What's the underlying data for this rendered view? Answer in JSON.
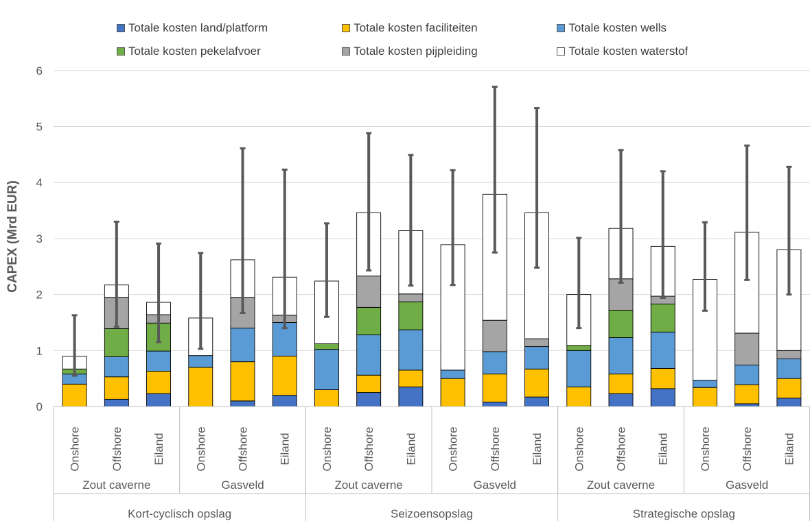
{
  "chart_data": {
    "type": "bar",
    "stacked": true,
    "ylabel": "CAPEX (Mrd EUR)",
    "ylim": [
      0,
      6
    ],
    "yticks": [
      "0",
      "1",
      "2",
      "3",
      "4",
      "5",
      "6"
    ],
    "grid": true,
    "legend_position": "top",
    "groups": [
      {
        "label": "Kort-cyclisch opslag",
        "subgroups": [
          {
            "label": "Zout caverne",
            "categories": [
              "Onshore",
              "Offshore",
              "Eiland"
            ]
          },
          {
            "label": "Gasveld",
            "categories": [
              "Onshore",
              "Offshore",
              "Eiland"
            ]
          }
        ]
      },
      {
        "label": "Seizoensopslag",
        "subgroups": [
          {
            "label": "Zout caverne",
            "categories": [
              "Onshore",
              "Offshore",
              "Eiland"
            ]
          },
          {
            "label": "Gasveld",
            "categories": [
              "Onshore",
              "Offshore",
              "Eiland"
            ]
          }
        ]
      },
      {
        "label": "Strategische opslag",
        "subgroups": [
          {
            "label": "Zout caverne",
            "categories": [
              "Onshore",
              "Offshore",
              "Eiland"
            ]
          },
          {
            "label": "Gasveld",
            "categories": [
              "Onshore",
              "Offshore",
              "Eiland"
            ]
          }
        ]
      }
    ],
    "series": [
      {
        "name": "Totale kosten land/platform",
        "color": "#4472c4",
        "values": [
          0,
          0.13,
          0.23,
          0,
          0.1,
          0.2,
          0,
          0.25,
          0.35,
          0,
          0.08,
          0.17,
          0,
          0.23,
          0.32,
          0,
          0.05,
          0.15
        ]
      },
      {
        "name": "Totale kosten faciliteiten",
        "color": "#ffc000",
        "values": [
          0.4,
          0.4,
          0.4,
          0.7,
          0.7,
          0.7,
          0.3,
          0.31,
          0.3,
          0.5,
          0.5,
          0.5,
          0.35,
          0.35,
          0.36,
          0.34,
          0.34,
          0.35
        ]
      },
      {
        "name": "Totale kosten wells",
        "color": "#5b9bd5",
        "values": [
          0.18,
          0.36,
          0.36,
          0.21,
          0.6,
          0.6,
          0.72,
          0.72,
          0.72,
          0.15,
          0.4,
          0.4,
          0.65,
          0.65,
          0.65,
          0.13,
          0.35,
          0.35
        ]
      },
      {
        "name": "Totale kosten pekelafvoer",
        "color": "#70ad47",
        "values": [
          0.09,
          0.5,
          0.5,
          0,
          0,
          0,
          0.1,
          0.49,
          0.5,
          0,
          0,
          0,
          0.09,
          0.49,
          0.5,
          0,
          0,
          0
        ]
      },
      {
        "name": "Totale kosten pijpleiding",
        "color": "#a5a5a5",
        "values": [
          0,
          0.56,
          0.15,
          0,
          0.55,
          0.13,
          0,
          0.56,
          0.14,
          0,
          0.56,
          0.14,
          0,
          0.56,
          0.14,
          0,
          0.57,
          0.15
        ]
      },
      {
        "name": "Totale kosten waterstof",
        "color": "#ffffff",
        "values": [
          0.23,
          0.22,
          0.22,
          0.67,
          0.67,
          0.68,
          1.12,
          1.13,
          1.13,
          2.24,
          2.25,
          2.25,
          0.91,
          0.9,
          0.89,
          1.8,
          1.8,
          1.8
        ]
      }
    ],
    "error_bars": {
      "color": "#595959",
      "low": [
        0.55,
        1.42,
        1.15,
        1.03,
        1.67,
        1.4,
        1.6,
        2.43,
        2.16,
        2.17,
        2.75,
        2.48,
        1.4,
        2.21,
        1.94,
        1.71,
        2.26,
        2.0
      ],
      "high": [
        1.63,
        3.3,
        2.91,
        2.74,
        4.61,
        4.23,
        3.27,
        4.88,
        4.49,
        4.22,
        5.71,
        5.33,
        3.01,
        4.58,
        4.2,
        3.29,
        4.66,
        4.28
      ]
    }
  }
}
